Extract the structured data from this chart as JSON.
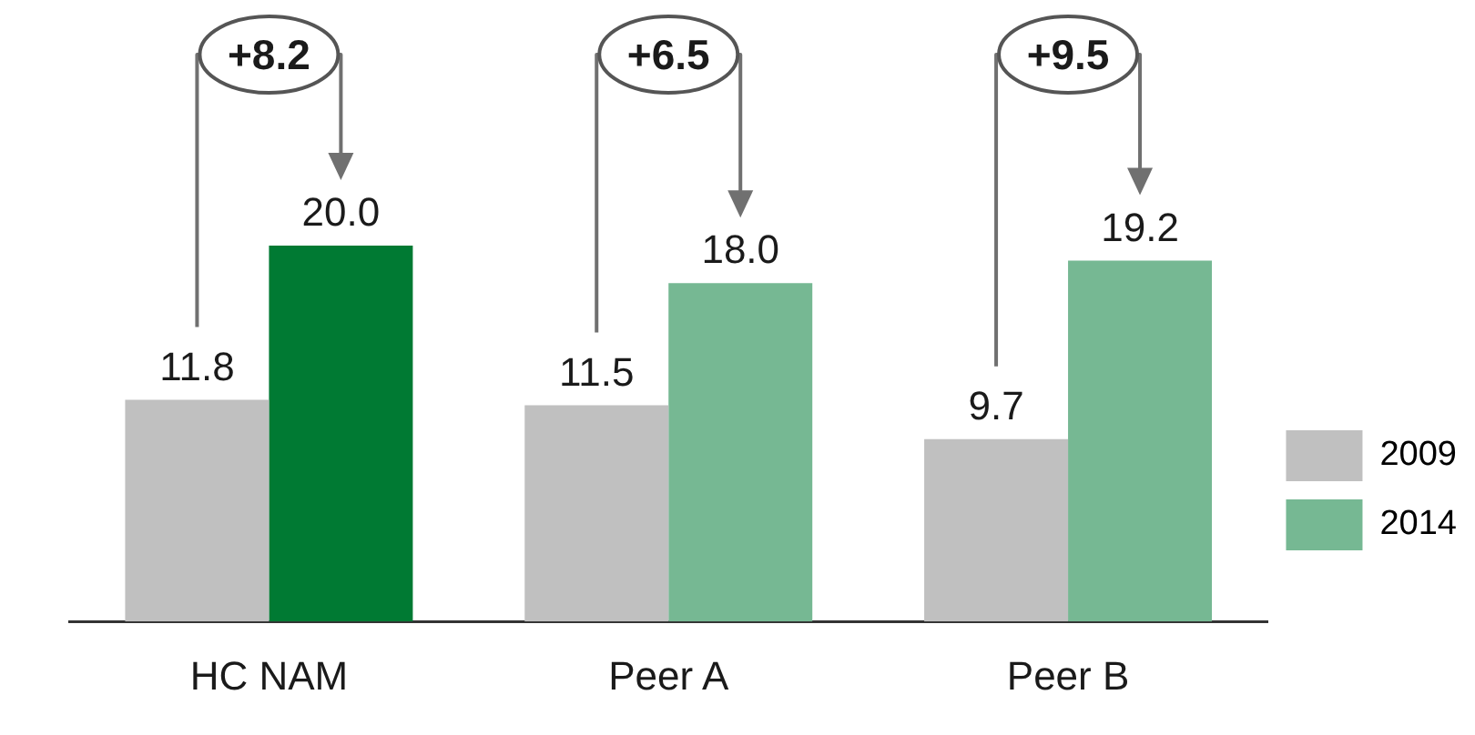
{
  "chart_data": {
    "type": "bar",
    "categories": [
      "HC NAM",
      "Peer A",
      "Peer B"
    ],
    "series": [
      {
        "name": "2009",
        "color": "#c0c0c0",
        "values": [
          11.8,
          11.5,
          9.7
        ],
        "value_labels": [
          "11.8",
          "11.5",
          "9.7"
        ]
      },
      {
        "name": "2014",
        "color": "#76b893",
        "colors": [
          "#007a33",
          "#76b893",
          "#76b893"
        ],
        "values": [
          20.0,
          18.0,
          19.2
        ],
        "value_labels": [
          "20.0",
          "18.0",
          "19.2"
        ]
      }
    ],
    "grid": false,
    "legend": "right",
    "tick_labels": "x",
    "annotations": [
      "+8.2",
      "+6.5",
      "+9.5"
    ]
  }
}
